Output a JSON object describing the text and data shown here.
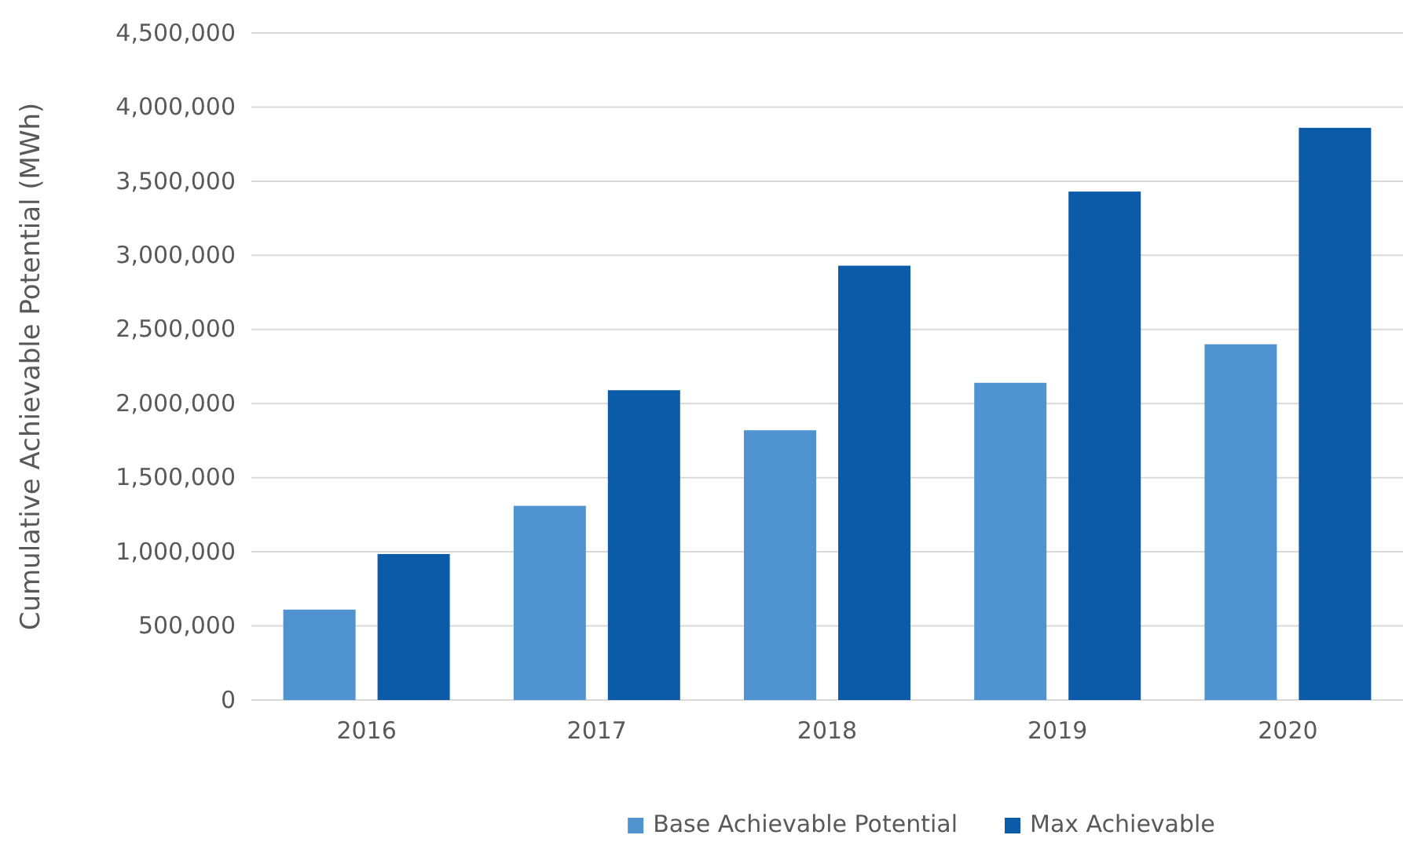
{
  "chart_data": {
    "type": "bar",
    "ylabel": "Cumulative Achievable Potential (MWh)",
    "categories": [
      "2016",
      "2017",
      "2018",
      "2019",
      "2020"
    ],
    "series": [
      {
        "name": "Base Achievable Potential",
        "color": "#4f93d1",
        "values": [
          610000,
          1310000,
          1820000,
          2140000,
          2400000
        ]
      },
      {
        "name": "Max Achievable",
        "color": "#0b5ba9",
        "values": [
          985000,
          2090000,
          2930000,
          3430000,
          3860000
        ]
      }
    ],
    "ylim": [
      0,
      4500000
    ],
    "yticks": [
      {
        "value": 0,
        "label": "0"
      },
      {
        "value": 500000,
        "label": "500,000"
      },
      {
        "value": 1000000,
        "label": "1,000,000"
      },
      {
        "value": 1500000,
        "label": "1,500,000"
      },
      {
        "value": 2000000,
        "label": "2,000,000"
      },
      {
        "value": 2500000,
        "label": "2,500,000"
      },
      {
        "value": 3000000,
        "label": "3,000,000"
      },
      {
        "value": 3500000,
        "label": "3,500,000"
      },
      {
        "value": 4000000,
        "label": "4,000,000"
      },
      {
        "value": 4500000,
        "label": "4,500,000"
      }
    ],
    "grid": "y",
    "legend": "bottom"
  }
}
